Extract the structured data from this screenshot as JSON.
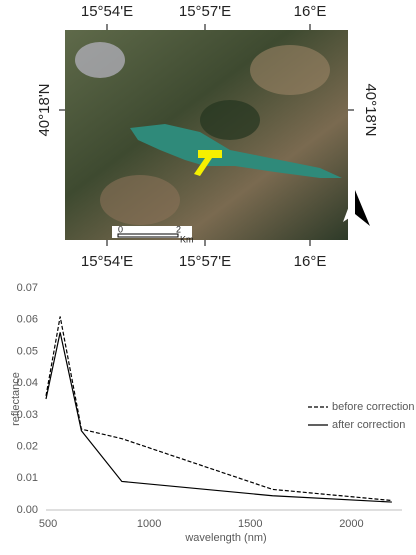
{
  "map": {
    "top_labels": [
      "15°54'E",
      "15°57'E",
      "16°E"
    ],
    "bottom_labels": [
      "15°54'E",
      "15°57'E",
      "16°E"
    ],
    "left_label": "40°18'N",
    "right_label": "40°18'N",
    "scale_start": "0",
    "scale_end": "2",
    "scale_unit": "Km",
    "north": "N"
  },
  "chart_data": {
    "type": "line",
    "x_label": "wavelength (nm)",
    "y_label": "reflectance",
    "x": [
      490,
      560,
      665,
      865,
      1610,
      2200
    ],
    "series": [
      {
        "name": "before correction",
        "color": "#000000",
        "dash": true,
        "values": [
          0.036,
          0.061,
          0.0255,
          0.0225,
          0.0065,
          0.003
        ]
      },
      {
        "name": "after correction",
        "color": "#000000",
        "dash": false,
        "values": [
          0.035,
          0.056,
          0.025,
          0.009,
          0.0045,
          0.0025
        ]
      }
    ],
    "xlim": [
      490,
      2250
    ],
    "xticks": [
      500,
      1000,
      1500,
      2000
    ],
    "ylim": [
      0,
      0.07
    ],
    "yticks": [
      {
        "value": 0,
        "label": "0.00"
      },
      0.01,
      0.02,
      0.03,
      0.04,
      0.05,
      0.06,
      0.07
    ],
    "legend": "right"
  }
}
